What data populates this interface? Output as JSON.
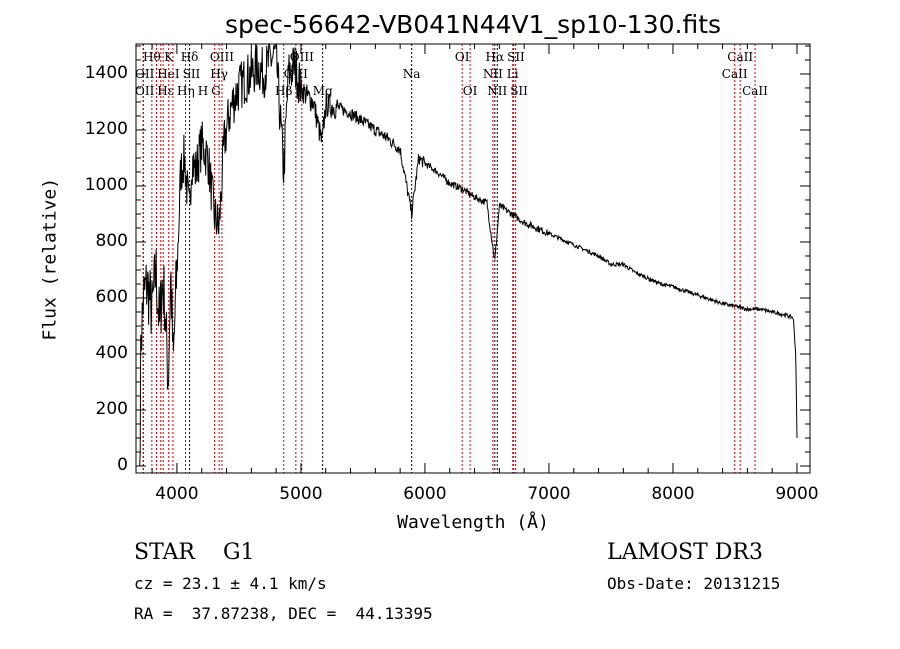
{
  "chart_data": {
    "type": "line",
    "title": "spec-56642-VB041N44V1_sp10-130.fits",
    "xlabel": "Wavelength (Å)",
    "ylabel": "Flux (relative)",
    "xlim": [
      3670,
      9105
    ],
    "ylim": [
      -25,
      1507
    ],
    "xticks": [
      4000,
      5000,
      6000,
      7000,
      8000,
      9000
    ],
    "yticks": [
      0,
      200,
      400,
      600,
      800,
      1000,
      1200,
      1400
    ],
    "grid": false,
    "series": [
      {
        "name": "flux",
        "points": [
          [
            3700,
            0
          ],
          [
            3710,
            450
          ],
          [
            3730,
            600
          ],
          [
            3760,
            650
          ],
          [
            3800,
            550
          ],
          [
            3830,
            700
          ],
          [
            3860,
            500
          ],
          [
            3880,
            650
          ],
          [
            3900,
            600
          ],
          [
            3930,
            300
          ],
          [
            3950,
            700
          ],
          [
            3970,
            350
          ],
          [
            3990,
            600
          ],
          [
            4010,
            800
          ],
          [
            4030,
            1050
          ],
          [
            4060,
            1100
          ],
          [
            4100,
            900
          ],
          [
            4120,
            1100
          ],
          [
            4150,
            1050
          ],
          [
            4200,
            1150
          ],
          [
            4250,
            1100
          ],
          [
            4300,
            900
          ],
          [
            4340,
            850
          ],
          [
            4380,
            1150
          ],
          [
            4420,
            1250
          ],
          [
            4450,
            1300
          ],
          [
            4500,
            1350
          ],
          [
            4550,
            1380
          ],
          [
            4600,
            1400
          ],
          [
            4650,
            1430
          ],
          [
            4700,
            1400
          ],
          [
            4750,
            1450
          ],
          [
            4800,
            1470
          ],
          [
            4861,
            1050
          ],
          [
            4900,
            1400
          ],
          [
            4950,
            1430
          ],
          [
            5000,
            1350
          ],
          [
            5050,
            1320
          ],
          [
            5100,
            1300
          ],
          [
            5170,
            1150
          ],
          [
            5200,
            1290
          ],
          [
            5300,
            1280
          ],
          [
            5400,
            1260
          ],
          [
            5500,
            1230
          ],
          [
            5600,
            1200
          ],
          [
            5700,
            1170
          ],
          [
            5800,
            1130
          ],
          [
            5893,
            900
          ],
          [
            5950,
            1100
          ],
          [
            6000,
            1080
          ],
          [
            6100,
            1050
          ],
          [
            6200,
            1010
          ],
          [
            6300,
            990
          ],
          [
            6400,
            960
          ],
          [
            6500,
            940
          ],
          [
            6563,
            730
          ],
          [
            6600,
            930
          ],
          [
            6700,
            900
          ],
          [
            6800,
            870
          ],
          [
            6900,
            850
          ],
          [
            7000,
            830
          ],
          [
            7100,
            810
          ],
          [
            7200,
            790
          ],
          [
            7300,
            770
          ],
          [
            7400,
            750
          ],
          [
            7500,
            720
          ],
          [
            7600,
            720
          ],
          [
            7700,
            690
          ],
          [
            7800,
            670
          ],
          [
            7900,
            650
          ],
          [
            8000,
            640
          ],
          [
            8200,
            610
          ],
          [
            8400,
            580
          ],
          [
            8500,
            570
          ],
          [
            8600,
            560
          ],
          [
            8700,
            560
          ],
          [
            8800,
            550
          ],
          [
            8900,
            540
          ],
          [
            8970,
            530
          ],
          [
            8990,
            400
          ],
          [
            9000,
            100
          ]
        ]
      }
    ],
    "lines": [
      {
        "label": "Hθ",
        "wave": 3798,
        "row": 0,
        "color": "#cc0000"
      },
      {
        "label": "K",
        "wave": 3934,
        "row": 0,
        "color": "#cc0000"
      },
      {
        "label": "Hδ",
        "wave": 4102,
        "row": 0,
        "color": "#000000"
      },
      {
        "label": "OIII",
        "wave": 4363,
        "row": 0,
        "color": "#cc0000"
      },
      {
        "label": "OIII",
        "wave": 5007,
        "row": 0,
        "color": "#cc0000"
      },
      {
        "label": "OI",
        "wave": 6300,
        "row": 0,
        "color": "#cc0000"
      },
      {
        "label": "Hα",
        "wave": 6563,
        "row": 0,
        "color": "#000000"
      },
      {
        "label": "SII",
        "wave": 6716,
        "row": 0,
        "color": "#cc0000"
      },
      {
        "label": "CaII",
        "wave": 8542,
        "row": 0,
        "color": "#cc0000"
      },
      {
        "label": "OII",
        "wave": 3727,
        "row": 1,
        "color": "#cc0000"
      },
      {
        "label": "HeI",
        "wave": 3889,
        "row": 1,
        "color": "#cc0000"
      },
      {
        "label": "SII",
        "wave": 4069,
        "row": 1,
        "color": "#cc0000"
      },
      {
        "label": "Hγ",
        "wave": 4340,
        "row": 1,
        "color": "#cc0000"
      },
      {
        "label": "OIII",
        "wave": 4959,
        "row": 1,
        "color": "#cc0000"
      },
      {
        "label": "Na",
        "wave": 5893,
        "row": 1,
        "color": "#000000"
      },
      {
        "label": "NII",
        "wave": 6548,
        "row": 1,
        "color": "#cc0000"
      },
      {
        "label": "Li",
        "wave": 6708,
        "row": 1,
        "color": "#cc0000"
      },
      {
        "label": "CaII",
        "wave": 8498,
        "row": 1,
        "color": "#cc0000"
      },
      {
        "label": "OII",
        "wave": 3730,
        "row": 2,
        "color": "#cc0000"
      },
      {
        "label": "Hε",
        "wave": 3835,
        "row": 2,
        "color": "#cc0000"
      },
      {
        "label": "Hη",
        "wave": 3870,
        "row": 2,
        "color": "#cc0000"
      },
      {
        "label": "H",
        "wave": 3968,
        "row": 2,
        "color": "#cc0000"
      },
      {
        "label": "G",
        "wave": 4304,
        "row": 2,
        "color": "#cc0000"
      },
      {
        "label": "Hβ",
        "wave": 4861,
        "row": 2,
        "color": "#cc0000"
      },
      {
        "label": "Mg",
        "wave": 5175,
        "row": 2,
        "color": "#000000"
      },
      {
        "label": "OI",
        "wave": 6364,
        "row": 2,
        "color": "#cc0000"
      },
      {
        "label": "NII",
        "wave": 6583,
        "row": 2,
        "color": "#000000"
      },
      {
        "label": "SII",
        "wave": 6731,
        "row": 2,
        "color": "#cc0000"
      },
      {
        "label": "CaII",
        "wave": 8662,
        "row": 2,
        "color": "#cc0000"
      }
    ]
  },
  "info": {
    "class": "STAR    G1",
    "cz": "cz = 23.1 ± 4.1 km/s",
    "coords": "RA =  37.87238, DEC =  44.13395",
    "survey": "LAMOST DR3",
    "obs_date": "Obs-Date: 20131215"
  }
}
